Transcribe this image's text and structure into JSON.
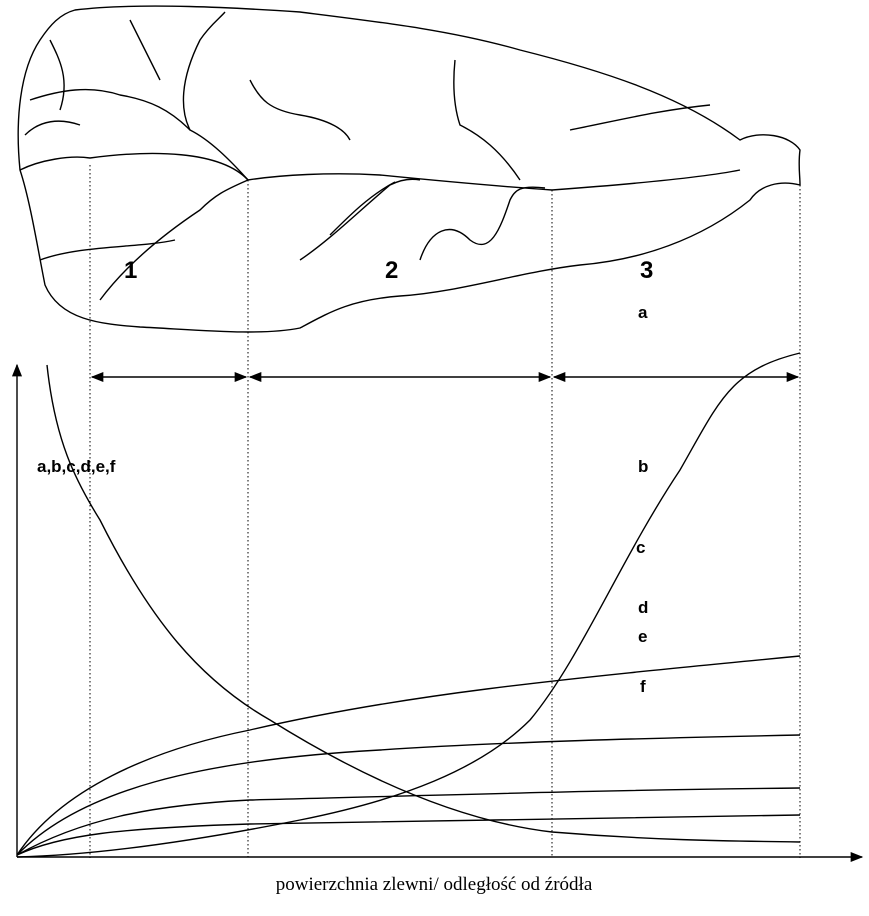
{
  "zones": [
    "1",
    "2",
    "3"
  ],
  "curve_labels": [
    "a",
    "b",
    "c",
    "d",
    "e",
    "f"
  ],
  "y_axis_label": "a,b,c,d,e,f",
  "x_axis_label": "powierzchnia zlewni/ odległość od źródła"
}
